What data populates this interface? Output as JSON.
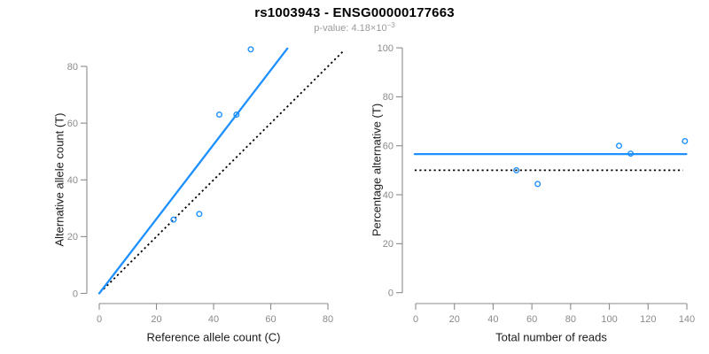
{
  "header": {
    "title": "rs1003943 - ENSG00000177663",
    "subtitle_main": "p-value: 4.18×10",
    "subtitle_exp": "−3"
  },
  "colors": {
    "accent_blue": "#1E90FF",
    "axis_gray": "#8B8B8B",
    "axis_title_dark": "#1A1A1A",
    "subtitle_gray": "#9B9B9B",
    "dotted_line_black": "#000000"
  },
  "chart_data": [
    {
      "type": "scatter",
      "title": "",
      "xlabel": "Reference allele count (C)",
      "ylabel": "Alternative allele count (T)",
      "xlim": [
        0,
        80
      ],
      "ylim": [
        0,
        80
      ],
      "xticks": [
        0,
        20,
        40,
        60,
        80
      ],
      "yticks": [
        0,
        20,
        40,
        60,
        80
      ],
      "grid": false,
      "legend": null,
      "points": [
        [
          26,
          26
        ],
        [
          35,
          28
        ],
        [
          42,
          63
        ],
        [
          48,
          63
        ],
        [
          53,
          86
        ]
      ],
      "fit_line": {
        "style": "solid",
        "color_role": "accent_blue",
        "slope": 1.304,
        "intercept": 0,
        "through": [
          [
            0,
            0
          ],
          [
            65.8,
            86.3
          ]
        ]
      },
      "ref_line": {
        "style": "dotted",
        "color_role": "dotted_line_black",
        "slope": 1,
        "intercept": 0,
        "through": [
          [
            1.5,
            1.5
          ],
          [
            85.5,
            85.5
          ]
        ]
      }
    },
    {
      "type": "scatter",
      "title": "",
      "xlabel": "Total number of reads",
      "ylabel": "Percentage alternative (T)",
      "xlim": [
        0,
        140
      ],
      "ylim": [
        0,
        100
      ],
      "xticks": [
        0,
        20,
        40,
        60,
        80,
        100,
        120,
        140
      ],
      "yticks": [
        0,
        20,
        40,
        60,
        80,
        100
      ],
      "grid": false,
      "legend": null,
      "points": [
        [
          52,
          50
        ],
        [
          63,
          44.4
        ],
        [
          105,
          60
        ],
        [
          111,
          56.8
        ],
        [
          139,
          61.9
        ]
      ],
      "fit_line": {
        "style": "solid",
        "color_role": "accent_blue",
        "value": 56.6,
        "through": [
          [
            -0.5,
            56.6
          ],
          [
            139.7,
            56.6
          ]
        ]
      },
      "ref_line": {
        "style": "dotted",
        "color_role": "dotted_line_black",
        "value": 50,
        "through": [
          [
            -0.5,
            50
          ],
          [
            138,
            50
          ]
        ]
      }
    }
  ]
}
